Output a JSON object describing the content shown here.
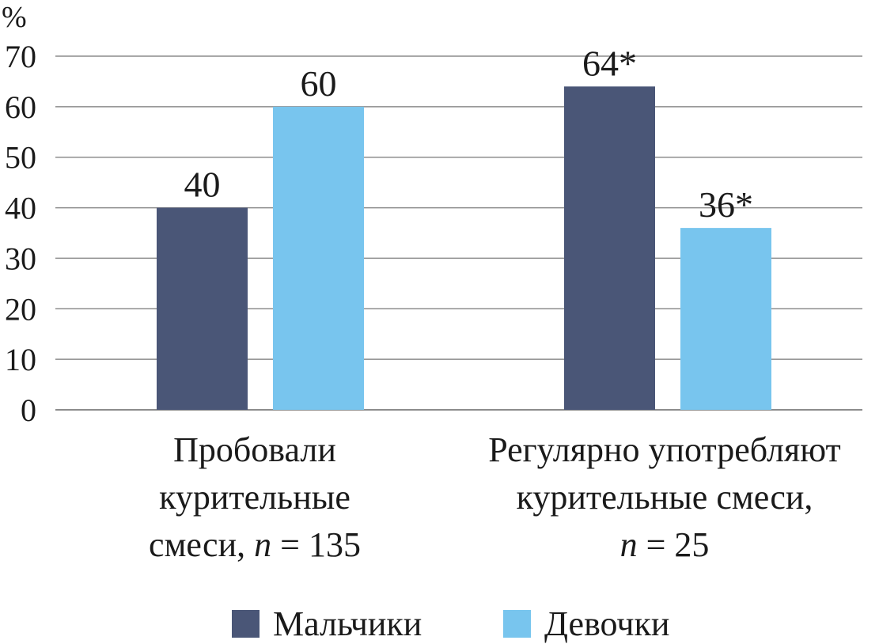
{
  "chart_data": {
    "type": "bar",
    "ylabel": "%",
    "ylim": [
      0,
      70
    ],
    "yticks": [
      "0",
      "10",
      "20",
      "30",
      "40",
      "50",
      "60",
      "70"
    ],
    "grid": true,
    "legend_position": "bottom",
    "categories": [
      {
        "lines": [
          [
            {
              "text": "Пробовали",
              "italic": false
            }
          ],
          [
            {
              "text": "курительные",
              "italic": false
            }
          ],
          [
            {
              "text": "смеси, ",
              "italic": false
            },
            {
              "text": "n",
              "italic": true
            },
            {
              "text": " = 135",
              "italic": false
            }
          ]
        ]
      },
      {
        "lines": [
          [
            {
              "text": "Регулярно употребляют",
              "italic": false
            }
          ],
          [
            {
              "text": "курительные смеси,",
              "italic": false
            }
          ],
          [
            {
              "text": "n",
              "italic": true
            },
            {
              "text": " = 25",
              "italic": false
            }
          ]
        ]
      }
    ],
    "series": [
      {
        "name": "Мальчики",
        "color": "#4a5677",
        "values": [
          40,
          64
        ],
        "labels": [
          "40",
          "64*"
        ]
      },
      {
        "name": "Девочки",
        "color": "#78c5ee",
        "values": [
          60,
          36
        ],
        "labels": [
          "60",
          "36*"
        ]
      }
    ]
  }
}
